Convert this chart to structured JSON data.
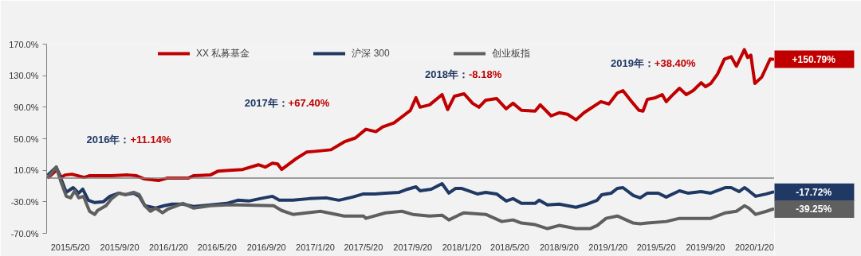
{
  "chart_data": {
    "type": "line",
    "legend": "top",
    "grid": false,
    "marker": "none",
    "line_style": "solid",
    "xlim": [
      "2015-03-22",
      "2020-03-10"
    ],
    "xticks": [
      {
        "value": "2015-05-20",
        "label": "2015/5/20"
      },
      {
        "value": "2015-09-20",
        "label": "2015/9/20"
      },
      {
        "value": "2016-01-20",
        "label": "2016/1/20"
      },
      {
        "value": "2016-05-20",
        "label": "2016/5/20"
      },
      {
        "value": "2016-09-20",
        "label": "2016/9/20"
      },
      {
        "value": "2017-01-20",
        "label": "2017/1/20"
      },
      {
        "value": "2017-05-20",
        "label": "2017/5/20"
      },
      {
        "value": "2017-09-20",
        "label": "2017/9/20"
      },
      {
        "value": "2018-01-20",
        "label": "2018/1/20"
      },
      {
        "value": "2018-05-20",
        "label": "2018/5/20"
      },
      {
        "value": "2018-09-20",
        "label": "2018/9/20"
      },
      {
        "value": "2019-01-20",
        "label": "2019/1/20"
      },
      {
        "value": "2019-05-20",
        "label": "2019/5/20"
      },
      {
        "value": "2019-09-20",
        "label": "2019/9/20"
      },
      {
        "value": "2020-01-20",
        "label": "2020/1/20"
      }
    ],
    "ylim": [
      -70,
      170
    ],
    "yticks": [
      {
        "value": -70,
        "label": "-70.0%"
      },
      {
        "value": -30,
        "label": "-30.0%"
      },
      {
        "value": 10,
        "label": "10.0%"
      },
      {
        "value": 50,
        "label": "50.0%"
      },
      {
        "value": 90,
        "label": "90.0%"
      },
      {
        "value": 130,
        "label": "130.0%"
      },
      {
        "value": 170,
        "label": "170.0%"
      }
    ],
    "ref_lines": [
      {
        "axis": "y",
        "value": 0,
        "color": "#808080"
      }
    ],
    "annotations": [
      "2016年：+11.14%",
      "2017年：+67.40%",
      "2018年：-8.18%",
      "2019年：+38.40%",
      {
        "text": "+150.79%",
        "x": "2020-03-06",
        "y": 150.79
      },
      {
        "text": "-17.72%",
        "x": "2020-03-06",
        "y": -17.72
      },
      {
        "text": "-39.25%",
        "x": "2020-03-06",
        "y": -39.25
      }
    ],
    "series": [
      {
        "name": "XX 私募基金",
        "color": "#c00000",
        "x": [
          "2015-03-27",
          "2015-04-17",
          "2015-04-27",
          "2015-05-07",
          "2015-05-24",
          "2015-06-24",
          "2015-07-06",
          "2015-08-31",
          "2015-10-11",
          "2015-11-01",
          "2015-11-21",
          "2015-12-26",
          "2016-01-16",
          "2016-03-09",
          "2016-03-22",
          "2016-05-03",
          "2016-05-23",
          "2016-06-20",
          "2016-07-23",
          "2016-08-31",
          "2016-09-17",
          "2016-10-05",
          "2016-10-18",
          "2016-10-28",
          "2016-12-01",
          "2016-12-29",
          "2017-01-19",
          "2017-02-28",
          "2017-04-02",
          "2017-04-30",
          "2017-05-26",
          "2017-06-20",
          "2017-07-07",
          "2017-08-04",
          "2017-09-14",
          "2017-09-28",
          "2017-10-08",
          "2017-11-01",
          "2017-12-02",
          "2017-12-16",
          "2018-01-02",
          "2018-01-26",
          "2018-02-16",
          "2018-03-04",
          "2018-03-21",
          "2018-04-17",
          "2018-05-11",
          "2018-05-28",
          "2018-06-18",
          "2018-07-22",
          "2018-08-04",
          "2018-08-31",
          "2018-09-20",
          "2018-10-11",
          "2018-11-01",
          "2018-11-21",
          "2019-01-02",
          "2019-01-22",
          "2019-02-12",
          "2019-02-26",
          "2019-03-20",
          "2019-04-07",
          "2019-04-17",
          "2019-04-28",
          "2019-05-18",
          "2019-06-04",
          "2019-06-14",
          "2019-06-27",
          "2019-07-17",
          "2019-08-03",
          "2019-08-20",
          "2019-09-09",
          "2019-09-20",
          "2019-10-03",
          "2019-10-20",
          "2019-11-06",
          "2019-11-23",
          "2019-12-06",
          "2019-12-26",
          "2020-01-03",
          "2020-01-11",
          "2020-01-21",
          "2020-02-07",
          "2020-02-18",
          "2020-02-28",
          "2020-03-06"
        ],
        "values": [
          1,
          11,
          1,
          4,
          5,
          1,
          3,
          3,
          4,
          3,
          -1,
          -3,
          0,
          0,
          3,
          4,
          9,
          10,
          11,
          17,
          14,
          19,
          18,
          11,
          24,
          33,
          34,
          36,
          46,
          51,
          62,
          59,
          65,
          70,
          86,
          102,
          90,
          93,
          106,
          87,
          104,
          107,
          95,
          90,
          99,
          101,
          88,
          95,
          86,
          85,
          93,
          79,
          83,
          81,
          74,
          83,
          97,
          94,
          108,
          111,
          97,
          86,
          85,
          100,
          102,
          106,
          97,
          104,
          114,
          106,
          111,
          121,
          116,
          120,
          132,
          151,
          154,
          142,
          163,
          153,
          156,
          120,
          128,
          140,
          151,
          150.79
        ]
      },
      {
        "name": "沪深 300",
        "color": "#1f3864",
        "x": [
          "2015-03-27",
          "2015-04-15",
          "2015-04-30",
          "2015-05-10",
          "2015-05-27",
          "2015-06-10",
          "2015-06-20",
          "2015-07-04",
          "2015-07-20",
          "2015-08-10",
          "2015-08-27",
          "2015-09-18",
          "2015-10-04",
          "2015-10-25",
          "2015-11-08",
          "2015-11-22",
          "2015-12-19",
          "2016-01-09",
          "2016-01-29",
          "2016-02-25",
          "2016-03-22",
          "2016-05-03",
          "2016-06-13",
          "2016-07-11",
          "2016-08-07",
          "2016-09-04",
          "2016-10-05",
          "2016-10-22",
          "2016-11-25",
          "2017-01-05",
          "2017-02-16",
          "2017-03-20",
          "2017-04-23",
          "2017-05-20",
          "2017-06-17",
          "2017-07-14",
          "2017-08-17",
          "2017-09-07",
          "2017-09-28",
          "2017-10-08",
          "2017-11-05",
          "2017-12-02",
          "2017-12-19",
          "2018-01-05",
          "2018-01-19",
          "2018-02-28",
          "2018-03-21",
          "2018-04-17",
          "2018-05-11",
          "2018-05-28",
          "2018-06-18",
          "2018-07-22",
          "2018-08-01",
          "2018-08-22",
          "2018-09-20",
          "2018-11-01",
          "2018-11-28",
          "2018-12-24",
          "2019-01-04",
          "2019-01-28",
          "2019-02-12",
          "2019-02-26",
          "2019-03-24",
          "2019-04-10",
          "2019-04-28",
          "2019-05-25",
          "2019-06-14",
          "2019-07-17",
          "2019-08-07",
          "2019-09-09",
          "2019-10-03",
          "2019-11-09",
          "2019-11-23",
          "2019-12-13",
          "2019-12-26",
          "2020-01-06",
          "2020-01-23",
          "2020-02-19",
          "2020-03-06"
        ],
        "values": [
          5,
          14,
          -5,
          -18,
          -12,
          -19,
          -14,
          -28,
          -31,
          -30,
          -23,
          -19,
          -21,
          -19,
          -23,
          -35,
          -38,
          -35,
          -33,
          -33,
          -36,
          -34,
          -32,
          -28,
          -29,
          -26,
          -23,
          -28,
          -28,
          -26,
          -25,
          -28,
          -24,
          -20,
          -20,
          -19,
          -18,
          -14,
          -11,
          -16,
          -14,
          -7,
          -19,
          -13,
          -13,
          -20,
          -18,
          -20,
          -29,
          -26,
          -32,
          -32,
          -28,
          -34,
          -33,
          -37,
          -33,
          -28,
          -21,
          -19,
          -13,
          -12,
          -22,
          -25,
          -19,
          -19,
          -24,
          -16,
          -19,
          -17,
          -19,
          -12,
          -12,
          -17,
          -12,
          -16,
          -23,
          -20,
          -17.72
        ]
      },
      {
        "name": "创业板指",
        "color": "#5f5f5f",
        "x": [
          "2015-03-27",
          "2015-04-15",
          "2015-04-27",
          "2015-05-10",
          "2015-05-21",
          "2015-05-31",
          "2015-06-10",
          "2015-06-22",
          "2015-07-07",
          "2015-07-20",
          "2015-07-27",
          "2015-08-17",
          "2015-08-31",
          "2015-09-18",
          "2015-10-04",
          "2015-10-25",
          "2015-11-08",
          "2015-11-22",
          "2015-12-06",
          "2015-12-19",
          "2016-01-05",
          "2016-01-19",
          "2016-02-25",
          "2016-03-22",
          "2016-05-03",
          "2016-06-13",
          "2016-07-11",
          "2016-10-08",
          "2016-10-28",
          "2016-11-25",
          "2017-02-02",
          "2017-04-02",
          "2017-05-20",
          "2017-05-26",
          "2017-07-14",
          "2017-08-24",
          "2017-09-20",
          "2017-11-01",
          "2017-12-02",
          "2017-12-19",
          "2018-01-12",
          "2018-01-26",
          "2018-03-21",
          "2018-04-30",
          "2018-05-28",
          "2018-06-18",
          "2018-07-22",
          "2018-08-22",
          "2018-09-20",
          "2018-11-01",
          "2018-12-06",
          "2018-12-24",
          "2019-01-15",
          "2019-02-12",
          "2019-03-24",
          "2019-04-10",
          "2019-04-28",
          "2019-06-14",
          "2019-07-17",
          "2019-08-07",
          "2019-10-03",
          "2019-11-09",
          "2019-12-06",
          "2019-12-26",
          "2020-01-06",
          "2020-01-23",
          "2020-02-19",
          "2020-03-06"
        ],
        "values": [
          2,
          14,
          -5,
          -23,
          -25,
          -16,
          -25,
          -23,
          -42,
          -46,
          -41,
          -35,
          -26,
          -19,
          -21,
          -18,
          -21,
          -35,
          -42,
          -38,
          -44,
          -39,
          -32,
          -38,
          -35,
          -34,
          -34,
          -35,
          -41,
          -46,
          -42,
          -48,
          -48,
          -51,
          -44,
          -42,
          -46,
          -48,
          -47,
          -53,
          -47,
          -44,
          -46,
          -55,
          -53,
          -57,
          -59,
          -64,
          -60,
          -64,
          -64,
          -60,
          -51,
          -48,
          -57,
          -58,
          -57,
          -55,
          -51,
          -51,
          -51,
          -44,
          -42,
          -35,
          -38,
          -46,
          -42,
          -39.25
        ]
      }
    ]
  }
}
